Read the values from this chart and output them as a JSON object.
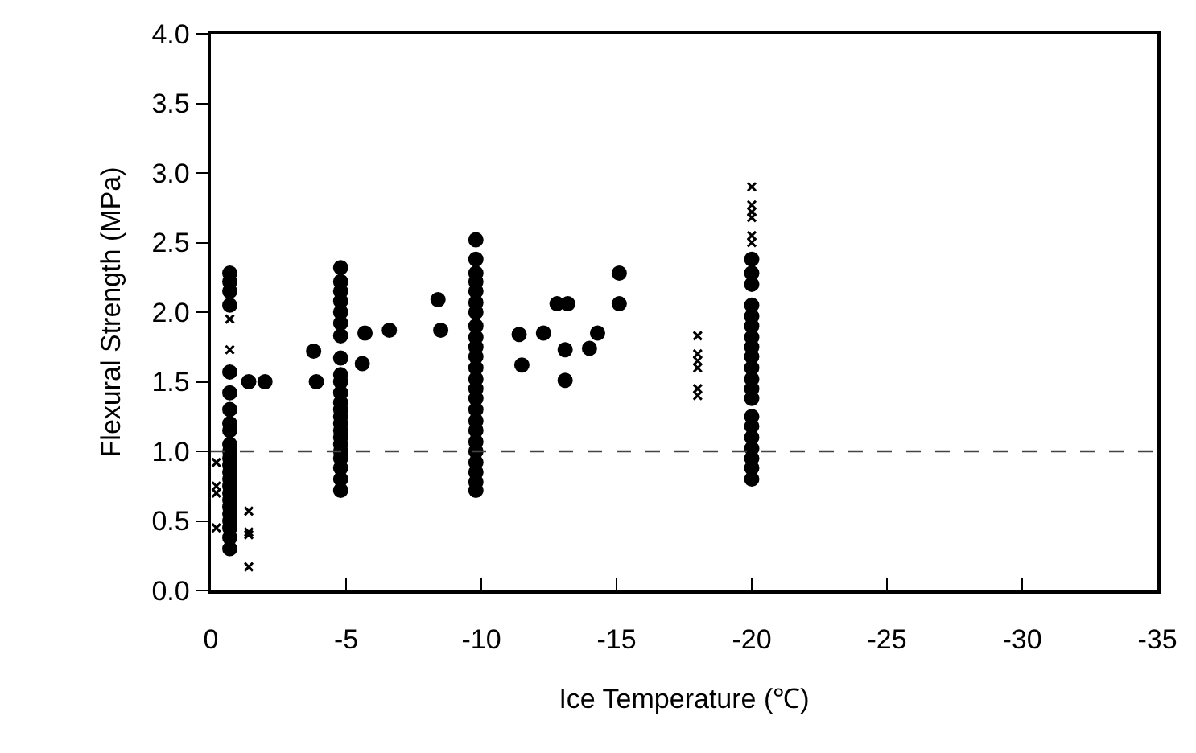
{
  "chart_data": {
    "type": "scatter",
    "xlabel": "Ice Temperature (℃)",
    "ylabel": "Flexural Strength (MPa)",
    "xlim": [
      0,
      -35
    ],
    "xticks": [
      0,
      -5,
      -10,
      -15,
      -20,
      -25,
      -30,
      -35
    ],
    "ylim": [
      0,
      4.0
    ],
    "yticks": [
      {
        "value": 0,
        "label": "0.0"
      },
      0.5,
      {
        "value": 1,
        "label": "1.0"
      },
      1.5,
      {
        "value": 2,
        "label": "2.0"
      },
      2.5,
      {
        "value": 3,
        "label": "3.0"
      },
      3.5,
      {
        "value": 4,
        "label": "4.0"
      }
    ],
    "ref_lines": [
      {
        "axis": "y",
        "value": 1.0,
        "color": "#444444",
        "line_style": "dashed"
      }
    ],
    "series": [
      {
        "color": "#000000",
        "marker": "circle",
        "x": [
          -0.7,
          -0.7,
          -0.7,
          -0.7,
          -0.7,
          -0.7,
          -0.7,
          -0.7,
          -0.7,
          -0.7,
          -0.7,
          -0.7,
          -0.7,
          -0.7,
          -0.7,
          -0.7,
          -0.7,
          -0.7,
          -0.7,
          -0.7,
          -0.7,
          -0.7,
          -0.7,
          -0.7,
          -4.8,
          -4.8,
          -4.8,
          -4.8,
          -4.8,
          -4.8,
          -4.8,
          -4.8,
          -4.8,
          -4.8,
          -4.8,
          -4.8,
          -4.8,
          -4.8,
          -4.8,
          -4.8,
          -4.8,
          -4.8,
          -4.8,
          -4.8,
          -4.8,
          -4.8,
          -4.8,
          -9.8,
          -9.8,
          -9.8,
          -9.8,
          -9.8,
          -9.8,
          -9.8,
          -9.8,
          -9.8,
          -9.8,
          -9.8,
          -9.8,
          -9.8,
          -9.8,
          -9.8,
          -9.8,
          -9.8,
          -9.8,
          -9.8,
          -9.8,
          -9.8,
          -9.8,
          -9.8,
          -9.8,
          -20,
          -20,
          -20,
          -20,
          -20,
          -20,
          -20,
          -20,
          -20,
          -20,
          -20,
          -20,
          -20,
          -20,
          -20,
          -20,
          -20,
          -20,
          -20,
          -20,
          -1.4,
          -2.0,
          -3.8,
          -3.9,
          -5.7,
          -5.6,
          -6.6,
          -8.4,
          -8.5,
          -11.4,
          -11.5,
          -12.3,
          -12.8,
          -13.2,
          -13.1,
          -13.1,
          -14.0,
          -14.3,
          -15.1,
          -15.1
        ],
        "values": [
          0.3,
          0.38,
          0.45,
          0.5,
          0.55,
          0.6,
          0.65,
          0.7,
          0.75,
          0.8,
          0.85,
          0.9,
          0.95,
          1.0,
          1.05,
          1.15,
          1.2,
          1.3,
          1.42,
          1.57,
          2.05,
          2.15,
          2.22,
          2.28,
          0.72,
          0.8,
          0.88,
          0.95,
          1.0,
          1.05,
          1.1,
          1.15,
          1.2,
          1.25,
          1.3,
          1.35,
          1.42,
          1.5,
          1.55,
          1.67,
          1.83,
          1.92,
          2.0,
          2.08,
          2.15,
          2.22,
          2.32,
          0.72,
          0.78,
          0.85,
          0.92,
          1.0,
          1.07,
          1.15,
          1.22,
          1.3,
          1.38,
          1.45,
          1.52,
          1.6,
          1.68,
          1.75,
          1.82,
          1.9,
          2.0,
          2.07,
          2.15,
          2.22,
          2.28,
          2.38,
          2.52,
          0.8,
          0.88,
          0.95,
          1.02,
          1.1,
          1.18,
          1.25,
          1.38,
          1.45,
          1.52,
          1.6,
          1.68,
          1.75,
          1.82,
          1.9,
          1.97,
          2.05,
          2.2,
          2.28,
          2.38,
          1.5,
          1.5,
          1.72,
          1.5,
          1.85,
          1.63,
          1.87,
          2.09,
          1.87,
          1.84,
          1.62,
          1.85,
          2.06,
          2.06,
          1.73,
          1.51,
          1.74,
          1.85,
          2.28,
          2.06
        ]
      },
      {
        "color": "#000000",
        "marker": "cross",
        "x": [
          -0.2,
          -0.2,
          -0.2,
          -0.2,
          -0.7,
          -0.7,
          -1.4,
          -1.4,
          -1.4,
          -1.4,
          -18,
          -18,
          -18,
          -18,
          -18,
          -18,
          -20,
          -20,
          -20,
          -20,
          -20,
          -20
        ],
        "values": [
          0.45,
          0.7,
          0.75,
          0.92,
          1.73,
          1.95,
          0.57,
          0.4,
          0.42,
          0.17,
          1.4,
          1.45,
          1.6,
          1.65,
          1.7,
          1.83,
          2.5,
          2.55,
          2.68,
          2.72,
          2.77,
          2.9
        ]
      }
    ]
  }
}
